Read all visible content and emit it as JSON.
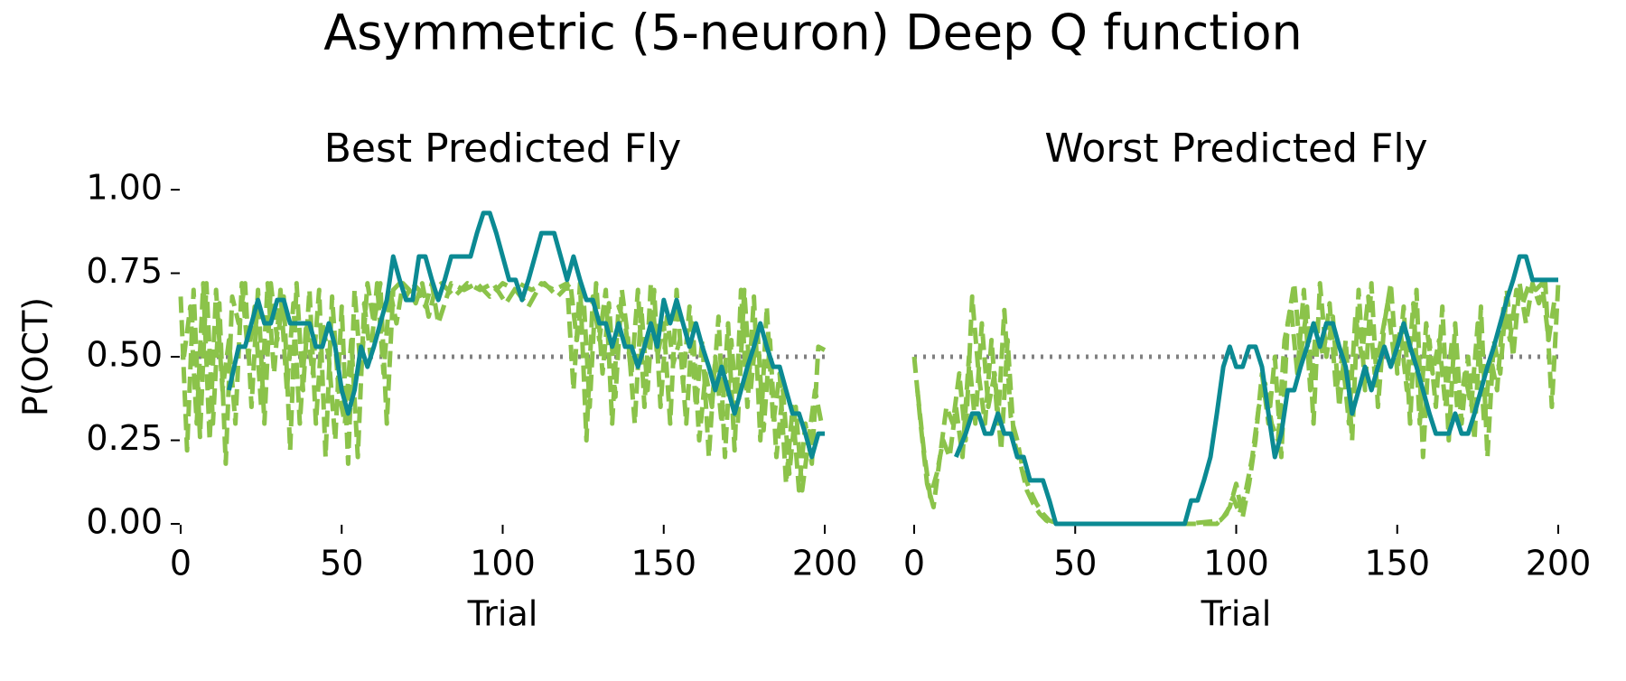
{
  "figure": {
    "title": "Asymmetric (5-neuron) Deep Q function"
  },
  "colors": {
    "model": "#8bc34a",
    "fly": "#0b8a93",
    "chance": "#808080"
  },
  "chart_data": [
    {
      "type": "line",
      "title": "Best Predicted Fly",
      "xlabel": "Trial",
      "ylabel": "P(OCT)",
      "xlim": [
        0,
        200
      ],
      "ylim": [
        0,
        1
      ],
      "xticks": [
        "0",
        "50",
        "100",
        "150",
        "200"
      ],
      "yticks": [
        "0.00",
        "0.25",
        "0.50",
        "0.75",
        "1.00"
      ],
      "reference_line": {
        "y": 0.5,
        "style": "dotted"
      },
      "series": [
        {
          "style": "dashed",
          "x": [
            0,
            2,
            4,
            6,
            8,
            10,
            12,
            14,
            16,
            18,
            20,
            22,
            24,
            26,
            28,
            30,
            32,
            34,
            36,
            38,
            40,
            42,
            44,
            46,
            48,
            50,
            52,
            54,
            56,
            58,
            60,
            62,
            64,
            66,
            68,
            70,
            72,
            74,
            76,
            78,
            80,
            84,
            88,
            92,
            96,
            100,
            104,
            108,
            112,
            116,
            120,
            122,
            124,
            126,
            128,
            130,
            132,
            134,
            136,
            138,
            140,
            142,
            144,
            146,
            148,
            150,
            152,
            154,
            156,
            158,
            160,
            162,
            164,
            166,
            168,
            170,
            172,
            174,
            176,
            178,
            180,
            182,
            184,
            186,
            188,
            190,
            192,
            194,
            196,
            198,
            200
          ],
          "y": [
            0.68,
            0.22,
            0.7,
            0.26,
            0.72,
            0.3,
            0.66,
            0.18,
            0.68,
            0.6,
            0.72,
            0.35,
            0.7,
            0.3,
            0.72,
            0.55,
            0.68,
            0.22,
            0.72,
            0.4,
            0.7,
            0.3,
            0.6,
            0.5,
            0.25,
            0.65,
            0.18,
            0.7,
            0.45,
            0.72,
            0.6,
            0.72,
            0.3,
            0.7,
            0.72,
            0.68,
            0.72,
            0.7,
            0.65,
            0.72,
            0.6,
            0.72,
            0.7,
            0.72,
            0.68,
            0.72,
            0.7,
            0.65,
            0.72,
            0.7,
            0.72,
            0.4,
            0.72,
            0.25,
            0.68,
            0.55,
            0.7,
            0.3,
            0.65,
            0.6,
            0.45,
            0.7,
            0.35,
            0.72,
            0.5,
            0.6,
            0.3,
            0.7,
            0.42,
            0.65,
            0.35,
            0.55,
            0.2,
            0.5,
            0.3,
            0.6,
            0.22,
            0.7,
            0.35,
            0.68,
            0.25,
            0.65,
            0.3,
            0.45,
            0.12,
            0.35,
            0.1,
            0.3,
            0.18,
            0.53,
            0.52
          ]
        },
        {
          "style": "dashed",
          "x": [
            1,
            3,
            5,
            7,
            9,
            11,
            13,
            15,
            17,
            19,
            21,
            23,
            25,
            27,
            29,
            31,
            33,
            35,
            37,
            39,
            41,
            43,
            45,
            47,
            49,
            51,
            53,
            55,
            57,
            59,
            61,
            63,
            65,
            67,
            69,
            71,
            73,
            75,
            77,
            79,
            81,
            85,
            89,
            93,
            97,
            101,
            105,
            109,
            113,
            117,
            119,
            121,
            123,
            125,
            127,
            129,
            131,
            133,
            135,
            137,
            139,
            141,
            143,
            145,
            147,
            149,
            151,
            153,
            155,
            157,
            159,
            161,
            163,
            165,
            167,
            169,
            171,
            173,
            175,
            177,
            179,
            181,
            183,
            185,
            187,
            189,
            191,
            193,
            195,
            197,
            199
          ],
          "y": [
            0.5,
            0.65,
            0.3,
            0.72,
            0.25,
            0.7,
            0.4,
            0.55,
            0.3,
            0.72,
            0.5,
            0.65,
            0.35,
            0.72,
            0.45,
            0.7,
            0.4,
            0.66,
            0.3,
            0.6,
            0.45,
            0.7,
            0.2,
            0.68,
            0.4,
            0.3,
            0.55,
            0.2,
            0.66,
            0.5,
            0.72,
            0.45,
            0.7,
            0.6,
            0.72,
            0.7,
            0.66,
            0.72,
            0.62,
            0.7,
            0.72,
            0.68,
            0.72,
            0.7,
            0.72,
            0.66,
            0.72,
            0.7,
            0.72,
            0.68,
            0.7,
            0.72,
            0.55,
            0.7,
            0.35,
            0.72,
            0.45,
            0.66,
            0.38,
            0.7,
            0.55,
            0.3,
            0.65,
            0.4,
            0.7,
            0.35,
            0.62,
            0.48,
            0.55,
            0.3,
            0.6,
            0.25,
            0.45,
            0.35,
            0.62,
            0.2,
            0.55,
            0.3,
            0.7,
            0.4,
            0.6,
            0.28,
            0.55,
            0.2,
            0.4,
            0.15,
            0.35,
            0.1,
            0.25,
            0.4,
            0.3
          ]
        },
        {
          "style": "solid",
          "x": [
            15,
            18,
            20,
            22,
            24,
            26,
            28,
            30,
            32,
            34,
            36,
            38,
            40,
            42,
            44,
            46,
            48,
            50,
            52,
            54,
            56,
            58,
            60,
            62,
            64,
            66,
            68,
            70,
            72,
            74,
            76,
            78,
            80,
            82,
            84,
            86,
            88,
            90,
            92,
            94,
            96,
            98,
            100,
            102,
            104,
            106,
            108,
            110,
            112,
            114,
            116,
            118,
            120,
            122,
            124,
            126,
            128,
            130,
            132,
            134,
            136,
            138,
            140,
            142,
            144,
            146,
            148,
            150,
            152,
            154,
            156,
            158,
            160,
            162,
            164,
            166,
            168,
            170,
            172,
            174,
            176,
            178,
            180,
            182,
            184,
            186,
            188,
            190,
            192,
            194,
            196,
            198,
            200
          ],
          "y": [
            0.4,
            0.53,
            0.53,
            0.6,
            0.67,
            0.6,
            0.6,
            0.67,
            0.67,
            0.6,
            0.6,
            0.6,
            0.6,
            0.53,
            0.53,
            0.6,
            0.53,
            0.4,
            0.33,
            0.4,
            0.53,
            0.47,
            0.53,
            0.6,
            0.67,
            0.8,
            0.73,
            0.67,
            0.67,
            0.8,
            0.8,
            0.73,
            0.67,
            0.73,
            0.8,
            0.8,
            0.8,
            0.8,
            0.87,
            0.93,
            0.93,
            0.87,
            0.8,
            0.73,
            0.73,
            0.67,
            0.73,
            0.8,
            0.87,
            0.87,
            0.87,
            0.8,
            0.73,
            0.8,
            0.73,
            0.67,
            0.67,
            0.6,
            0.6,
            0.53,
            0.6,
            0.53,
            0.53,
            0.47,
            0.53,
            0.6,
            0.53,
            0.67,
            0.6,
            0.67,
            0.6,
            0.53,
            0.6,
            0.53,
            0.47,
            0.4,
            0.47,
            0.4,
            0.33,
            0.4,
            0.47,
            0.53,
            0.6,
            0.53,
            0.47,
            0.47,
            0.4,
            0.33,
            0.33,
            0.27,
            0.2,
            0.27,
            0.27
          ]
        }
      ]
    },
    {
      "type": "line",
      "title": "Worst Predicted Fly",
      "xlabel": "Trial",
      "ylabel": "",
      "xlim": [
        0,
        200
      ],
      "ylim": [
        0,
        1
      ],
      "xticks": [
        "0",
        "50",
        "100",
        "150",
        "200"
      ],
      "yticks": [],
      "reference_line": {
        "y": 0.5,
        "style": "dotted"
      },
      "series": [
        {
          "style": "dashed",
          "x": [
            0,
            2,
            4,
            6,
            8,
            10,
            12,
            14,
            16,
            18,
            20,
            22,
            24,
            26,
            28,
            30,
            32,
            34,
            36,
            38,
            40,
            42,
            45,
            50,
            60,
            70,
            80,
            90,
            94,
            96,
            98,
            100,
            102,
            104,
            106,
            108,
            110,
            112,
            114,
            116,
            118,
            120,
            122,
            124,
            126,
            128,
            130,
            132,
            134,
            136,
            138,
            140,
            142,
            144,
            146,
            148,
            150,
            152,
            154,
            156,
            158,
            160,
            162,
            164,
            166,
            168,
            170,
            172,
            174,
            176,
            178,
            180,
            182,
            184,
            186,
            188,
            190,
            192,
            194,
            196,
            198,
            200
          ],
          "y": [
            0.5,
            0.3,
            0.12,
            0.05,
            0.2,
            0.35,
            0.3,
            0.45,
            0.25,
            0.68,
            0.45,
            0.3,
            0.55,
            0.3,
            0.64,
            0.32,
            0.25,
            0.15,
            0.1,
            0.06,
            0.03,
            0.01,
            0.0,
            0.0,
            0.0,
            0.0,
            0.0,
            0.0,
            0.0,
            0.02,
            0.05,
            0.12,
            0.02,
            0.12,
            0.25,
            0.45,
            0.3,
            0.5,
            0.2,
            0.6,
            0.72,
            0.5,
            0.65,
            0.3,
            0.72,
            0.5,
            0.62,
            0.35,
            0.55,
            0.25,
            0.7,
            0.4,
            0.72,
            0.35,
            0.6,
            0.72,
            0.45,
            0.65,
            0.3,
            0.7,
            0.2,
            0.55,
            0.35,
            0.65,
            0.25,
            0.6,
            0.3,
            0.5,
            0.25,
            0.65,
            0.2,
            0.55,
            0.45,
            0.7,
            0.5,
            0.72,
            0.6,
            0.72,
            0.66,
            0.72,
            0.35,
            0.72
          ]
        },
        {
          "style": "dashed",
          "x": [
            1,
            3,
            5,
            7,
            9,
            11,
            13,
            15,
            17,
            19,
            21,
            23,
            25,
            27,
            29,
            31,
            33,
            35,
            37,
            39,
            41,
            43,
            46,
            55,
            65,
            75,
            85,
            95,
            97,
            99,
            101,
            103,
            105,
            107,
            109,
            111,
            113,
            115,
            117,
            119,
            121,
            123,
            125,
            127,
            129,
            131,
            133,
            135,
            137,
            139,
            141,
            143,
            145,
            147,
            149,
            151,
            153,
            155,
            157,
            159,
            161,
            163,
            165,
            167,
            169,
            171,
            173,
            175,
            177,
            179,
            181,
            183,
            185,
            187,
            189,
            191,
            193,
            195,
            197,
            199
          ],
          "y": [
            0.4,
            0.22,
            0.08,
            0.15,
            0.25,
            0.2,
            0.35,
            0.2,
            0.5,
            0.3,
            0.6,
            0.35,
            0.45,
            0.22,
            0.55,
            0.25,
            0.18,
            0.1,
            0.06,
            0.03,
            0.01,
            0.0,
            0.0,
            0.0,
            0.0,
            0.0,
            0.0,
            0.01,
            0.03,
            0.08,
            0.03,
            0.1,
            0.2,
            0.35,
            0.42,
            0.3,
            0.25,
            0.55,
            0.65,
            0.45,
            0.7,
            0.4,
            0.6,
            0.5,
            0.66,
            0.4,
            0.5,
            0.3,
            0.62,
            0.5,
            0.68,
            0.45,
            0.55,
            0.66,
            0.5,
            0.58,
            0.4,
            0.66,
            0.3,
            0.6,
            0.45,
            0.55,
            0.35,
            0.55,
            0.3,
            0.45,
            0.35,
            0.6,
            0.3,
            0.5,
            0.4,
            0.65,
            0.55,
            0.7,
            0.66,
            0.72,
            0.7,
            0.72,
            0.55,
            0.68
          ]
        },
        {
          "style": "solid",
          "x": [
            13,
            16,
            18,
            20,
            22,
            24,
            26,
            28,
            30,
            32,
            34,
            36,
            38,
            40,
            42,
            44,
            50,
            60,
            70,
            80,
            84,
            86,
            88,
            90,
            92,
            94,
            96,
            98,
            100,
            102,
            104,
            106,
            108,
            110,
            112,
            114,
            116,
            118,
            120,
            122,
            124,
            126,
            128,
            130,
            132,
            134,
            136,
            138,
            140,
            142,
            144,
            146,
            148,
            150,
            152,
            154,
            156,
            158,
            160,
            162,
            164,
            166,
            168,
            170,
            172,
            174,
            176,
            178,
            180,
            182,
            184,
            186,
            188,
            190,
            192,
            194,
            196,
            198,
            200
          ],
          "y": [
            0.2,
            0.27,
            0.33,
            0.33,
            0.27,
            0.27,
            0.33,
            0.27,
            0.27,
            0.2,
            0.2,
            0.13,
            0.13,
            0.13,
            0.07,
            0.0,
            0.0,
            0.0,
            0.0,
            0.0,
            0.0,
            0.07,
            0.07,
            0.13,
            0.2,
            0.33,
            0.47,
            0.53,
            0.47,
            0.47,
            0.53,
            0.53,
            0.47,
            0.33,
            0.2,
            0.27,
            0.4,
            0.4,
            0.47,
            0.53,
            0.6,
            0.53,
            0.6,
            0.6,
            0.53,
            0.47,
            0.33,
            0.4,
            0.47,
            0.4,
            0.47,
            0.53,
            0.47,
            0.53,
            0.6,
            0.53,
            0.47,
            0.4,
            0.33,
            0.27,
            0.27,
            0.27,
            0.33,
            0.27,
            0.27,
            0.33,
            0.4,
            0.47,
            0.53,
            0.6,
            0.67,
            0.73,
            0.8,
            0.8,
            0.73,
            0.73,
            0.73,
            0.73,
            0.73
          ]
        }
      ]
    }
  ]
}
